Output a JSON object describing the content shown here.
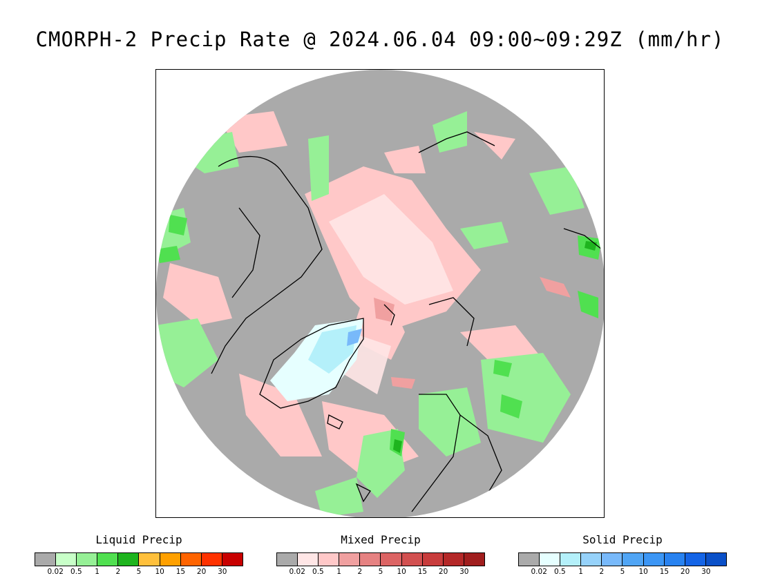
{
  "title": "CMORPH-2 Precip Rate @ 2024.06.04 09:00~09:29Z (mm/hr)",
  "map": {
    "projection": "polar stereographic (north pole)",
    "background_color": "#aaaaaa",
    "outside_color": "#ffffff"
  },
  "legends": [
    {
      "title": "Liquid Precip",
      "colors": [
        "#aaaaaa",
        "#c8ffc8",
        "#96f096",
        "#50e050",
        "#1eb41e",
        "#ffc03c",
        "#ffa000",
        "#ff6400",
        "#ff3200",
        "#c80000"
      ],
      "ticks": [
        "0.02",
        "0.5",
        "1",
        "2",
        "5",
        "10",
        "15",
        "20",
        "30"
      ]
    },
    {
      "title": "Mixed Precip",
      "colors": [
        "#aaaaaa",
        "#ffe6e6",
        "#ffc8c8",
        "#f0a0a0",
        "#e68282",
        "#dc6464",
        "#d25050",
        "#c83c3c",
        "#b42828",
        "#a01e1e"
      ],
      "ticks": [
        "0.02",
        "0.5",
        "1",
        "2",
        "5",
        "10",
        "15",
        "20",
        "30"
      ]
    },
    {
      "title": "Solid Precip",
      "colors": [
        "#aaaaaa",
        "#e6ffff",
        "#b4f0fa",
        "#96d2fa",
        "#78b9fa",
        "#50a5f5",
        "#3c96f5",
        "#2882f0",
        "#1464e6",
        "#0a50c8"
      ],
      "ticks": [
        "0.02",
        "0.5",
        "1",
        "2",
        "5",
        "10",
        "15",
        "20",
        "30"
      ]
    }
  ]
}
